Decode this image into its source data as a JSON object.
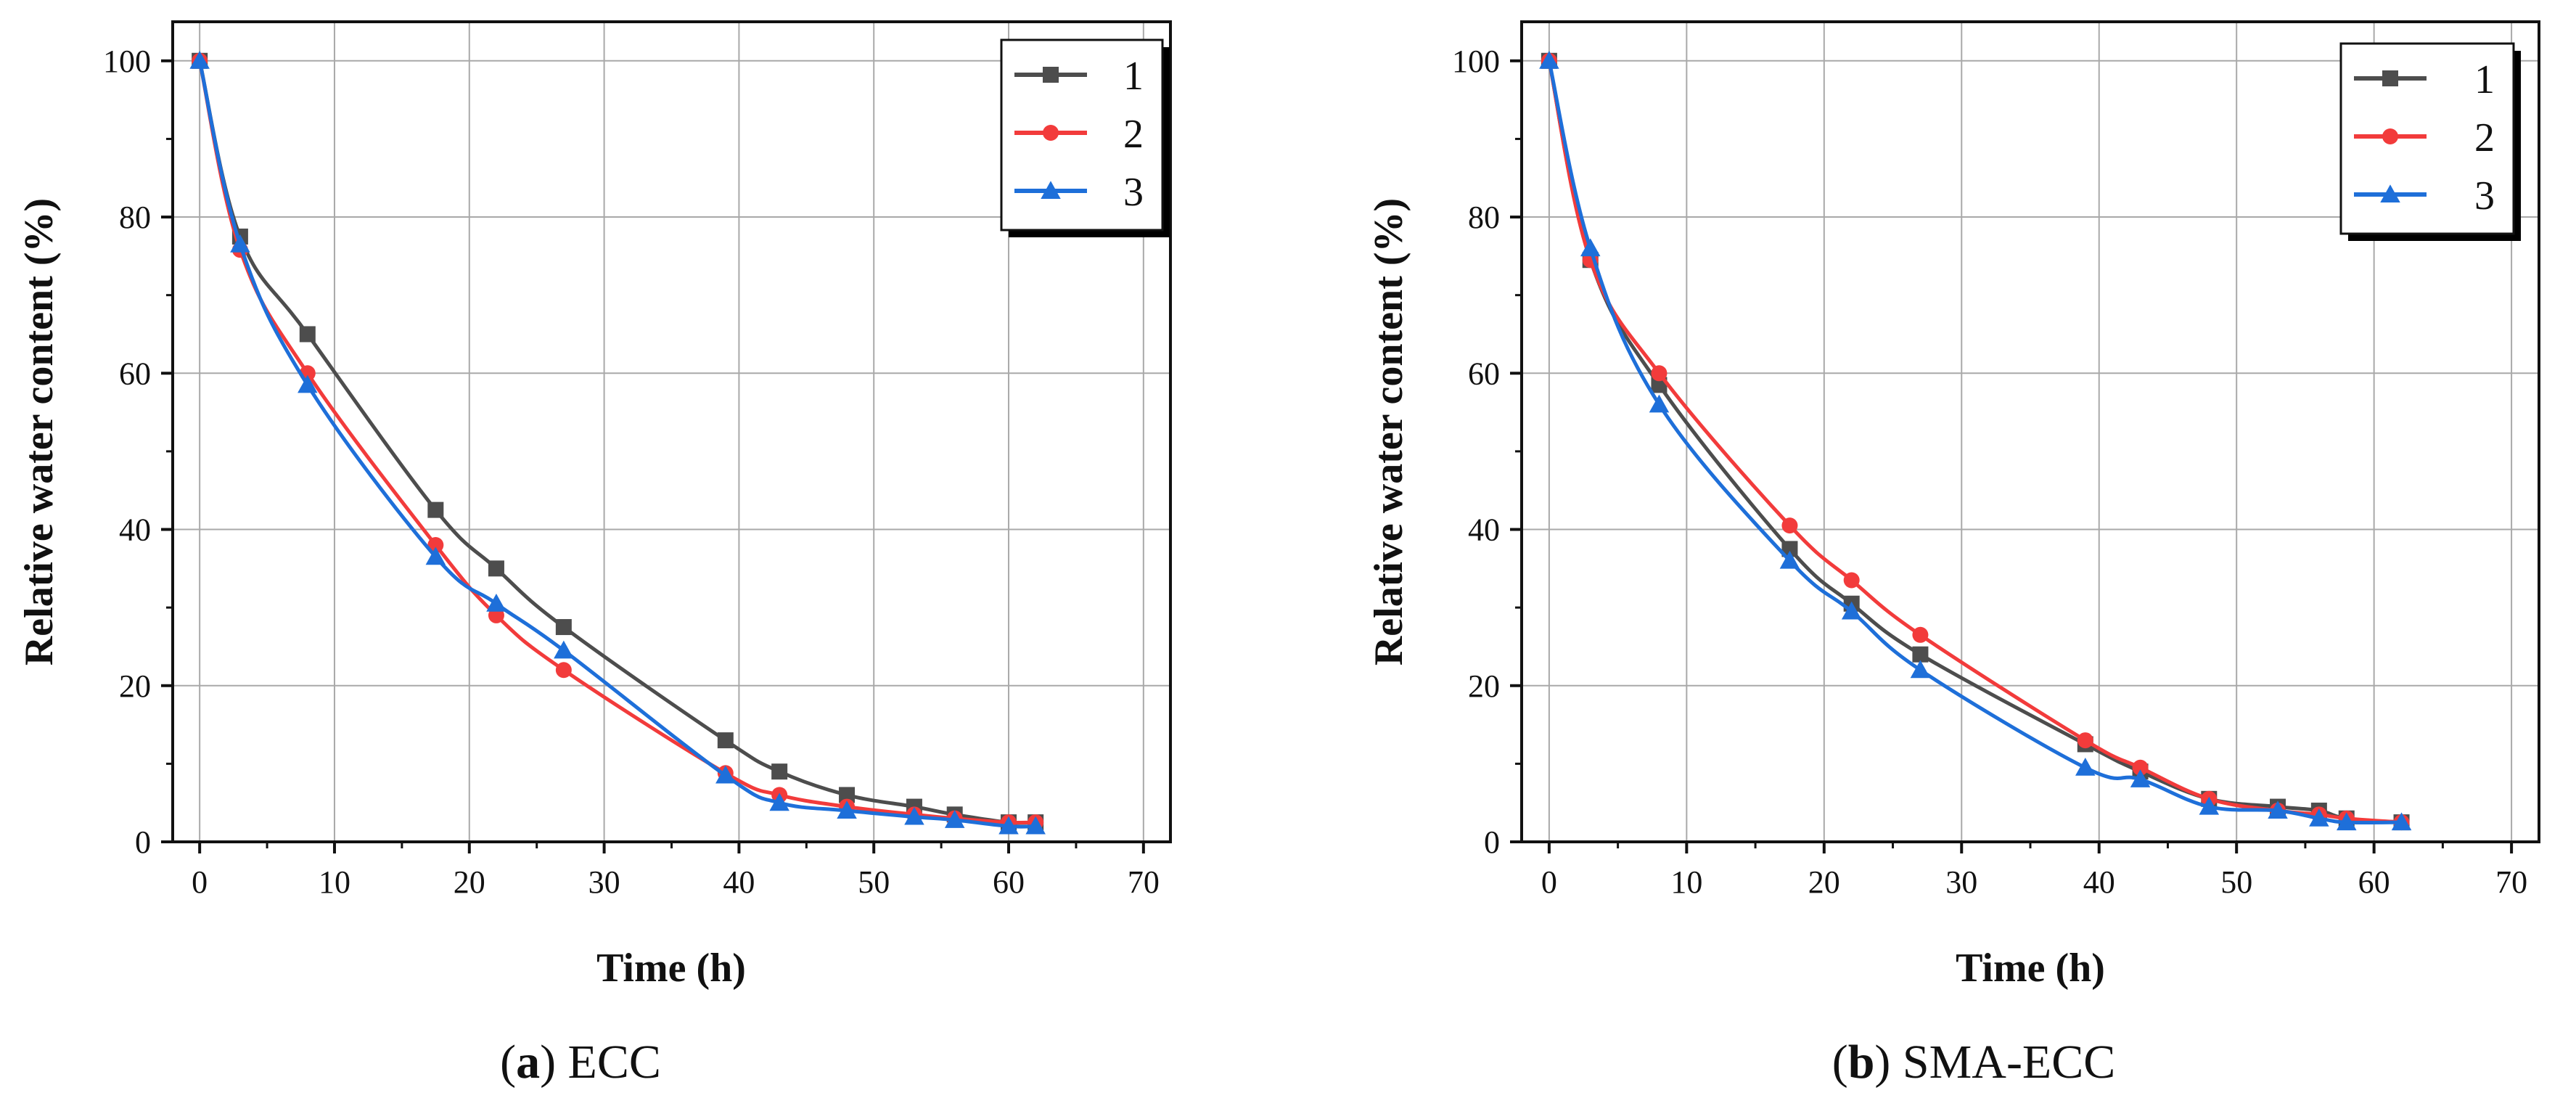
{
  "chart_data": [
    {
      "type": "line",
      "xlabel": "Time (h)",
      "ylabel": "Relative water content (%)",
      "xlim": [
        -2,
        72
      ],
      "ylim": [
        0,
        105
      ],
      "xticks": [
        0,
        10,
        20,
        30,
        40,
        50,
        60,
        70
      ],
      "yticks": [
        0,
        20,
        40,
        60,
        80,
        100
      ],
      "grid": true,
      "legend": "top-right",
      "caption_letter": "a",
      "caption_text": "ECC",
      "series": [
        {
          "name": "1",
          "color": "#4d4d4d",
          "marker": "square",
          "x": [
            0,
            3,
            8,
            17.5,
            22,
            27,
            39,
            43,
            48,
            53,
            56,
            60,
            62
          ],
          "y": [
            100,
            77.5,
            65,
            42.5,
            35,
            27.5,
            13,
            9,
            6,
            4.5,
            3.5,
            2.5,
            2.5
          ]
        },
        {
          "name": "2",
          "color": "#f23b3b",
          "marker": "circle",
          "x": [
            0,
            3,
            8,
            17.5,
            22,
            27,
            39,
            43,
            48,
            53,
            56,
            60,
            62
          ],
          "y": [
            100,
            75.8,
            60,
            38,
            29,
            22,
            8.8,
            6,
            4.5,
            3.5,
            3,
            2.5,
            2.5
          ]
        },
        {
          "name": "3",
          "color": "#1e6fd9",
          "marker": "triangle",
          "x": [
            0,
            3,
            8,
            17.5,
            22,
            27,
            39,
            43,
            48,
            53,
            56,
            60,
            62
          ],
          "y": [
            100,
            76.5,
            58.5,
            36.5,
            30.5,
            24.5,
            8.5,
            5,
            4,
            3.2,
            2.8,
            2,
            2
          ]
        }
      ]
    },
    {
      "type": "line",
      "xlabel": "Time (h)",
      "ylabel": "Relative water content (%)",
      "xlim": [
        -2,
        72
      ],
      "ylim": [
        0,
        105
      ],
      "xticks": [
        0,
        10,
        20,
        30,
        40,
        50,
        60,
        70
      ],
      "yticks": [
        0,
        20,
        40,
        60,
        80,
        100
      ],
      "grid": true,
      "legend": "top-right",
      "caption_letter": "b",
      "caption_text": "SMA-ECC",
      "series": [
        {
          "name": "1",
          "color": "#4d4d4d",
          "marker": "square",
          "x": [
            0,
            3,
            8,
            17.5,
            22,
            27,
            39,
            43,
            48,
            53,
            56,
            58,
            62
          ],
          "y": [
            100,
            74.5,
            58.5,
            37.5,
            30.5,
            24,
            12.5,
            9,
            5.5,
            4.5,
            4,
            3,
            2.5
          ]
        },
        {
          "name": "2",
          "color": "#f23b3b",
          "marker": "circle",
          "x": [
            0,
            3,
            8,
            17.5,
            22,
            27,
            39,
            43,
            48,
            53,
            56,
            58,
            62
          ],
          "y": [
            100,
            74.5,
            60,
            40.5,
            33.5,
            26.5,
            13,
            9.5,
            5.5,
            4,
            3.5,
            3,
            2.5
          ]
        },
        {
          "name": "3",
          "color": "#1e6fd9",
          "marker": "triangle",
          "x": [
            0,
            3,
            8,
            17.5,
            22,
            27,
            39,
            43,
            48,
            53,
            56,
            58,
            62
          ],
          "y": [
            100,
            76,
            56,
            36,
            29.5,
            22,
            9.5,
            8,
            4.5,
            4,
            3,
            2.5,
            2.5
          ]
        }
      ]
    }
  ]
}
